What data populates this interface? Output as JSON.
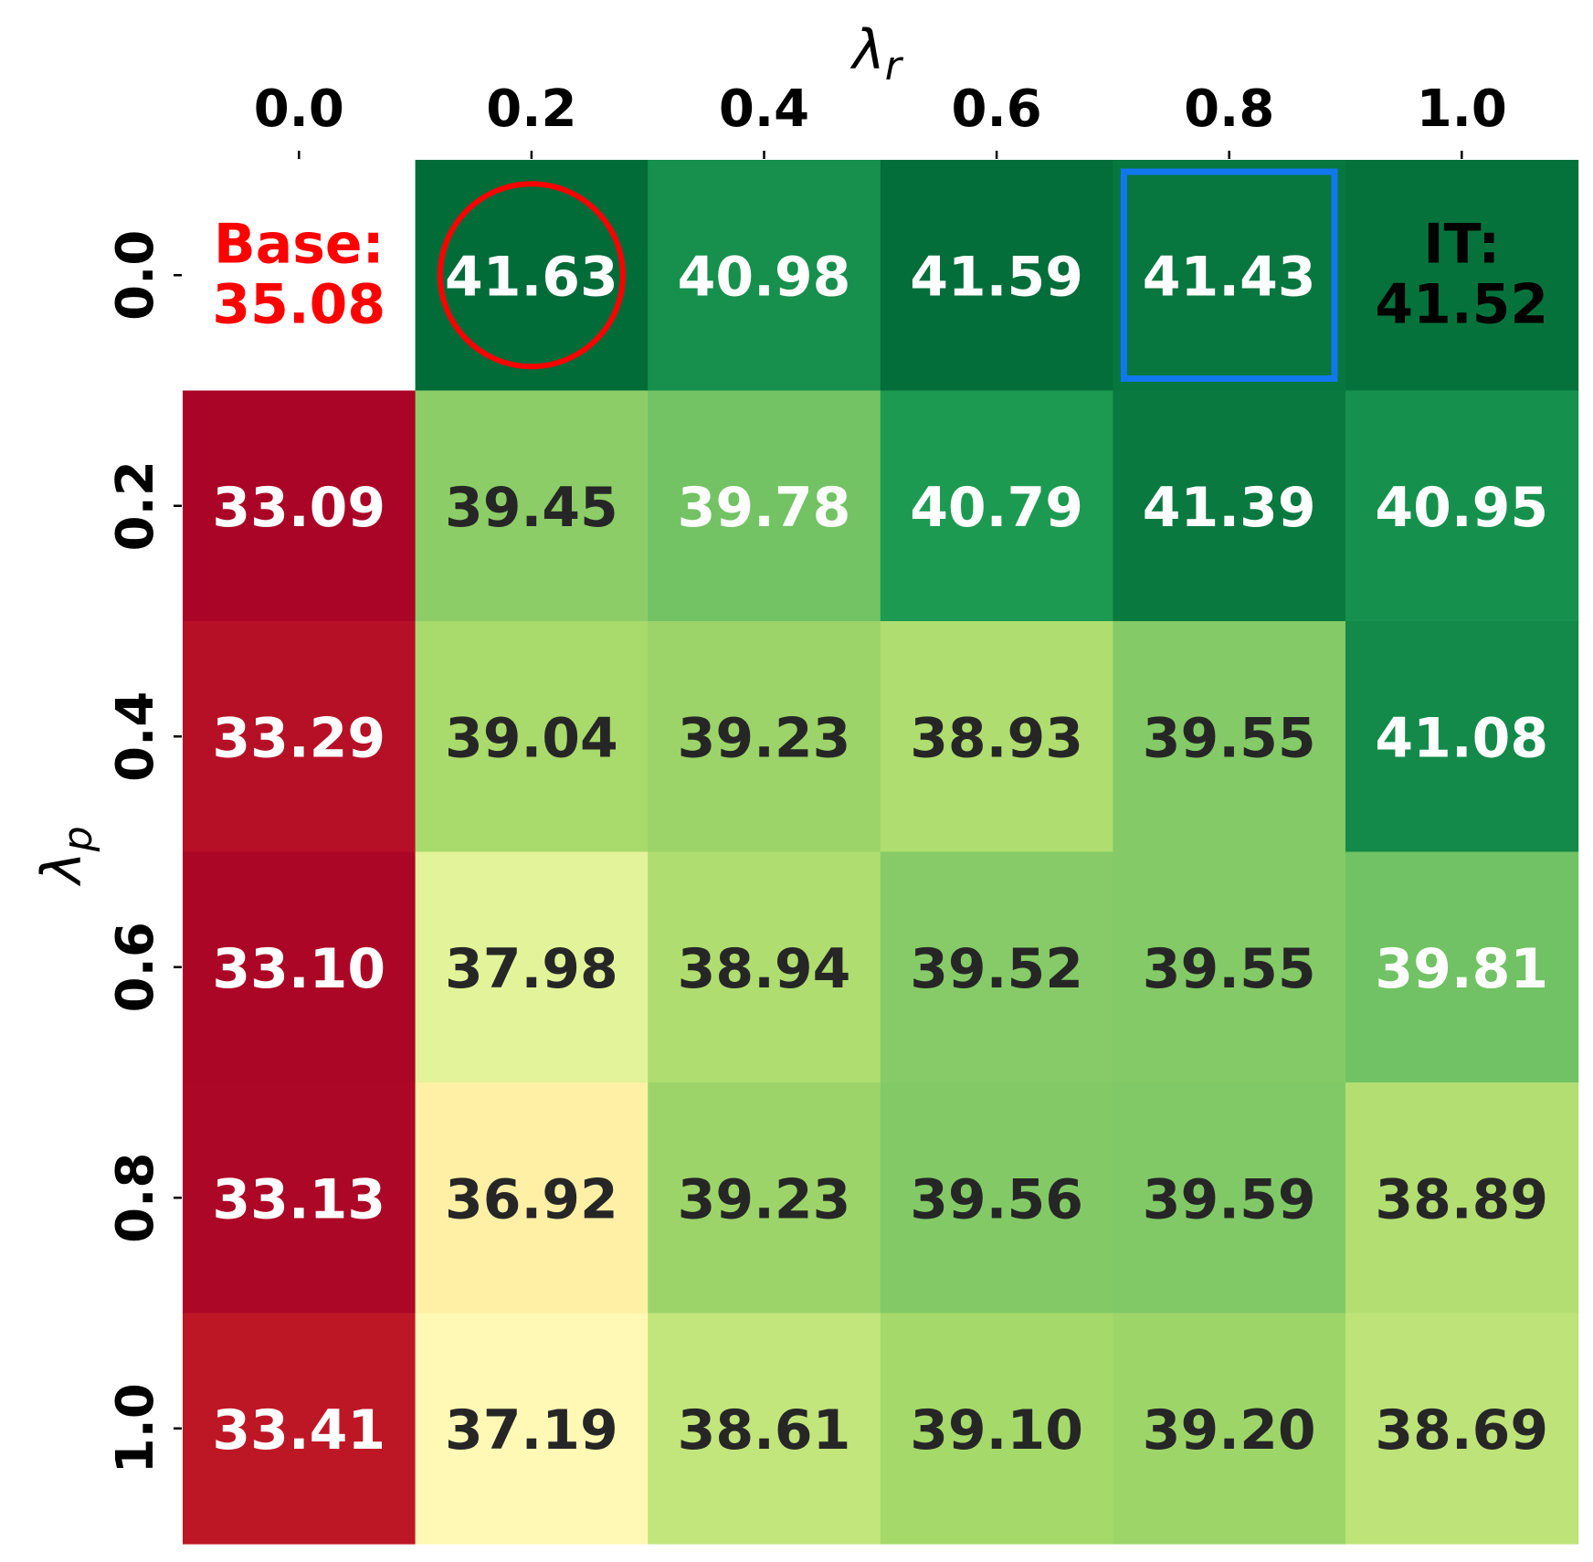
{
  "chart_data": {
    "type": "heatmap",
    "xlabel": "λ",
    "xlabel_sub": "r",
    "ylabel": "λ",
    "ylabel_sub": "p",
    "x_ticks": [
      "0.0",
      "0.2",
      "0.4",
      "0.6",
      "0.8",
      "1.0"
    ],
    "y_ticks": [
      "0.0",
      "0.2",
      "0.4",
      "0.6",
      "0.8",
      "1.0"
    ],
    "x_axis_position": "top",
    "colormap": "RdYlGn",
    "color_range": [
      33.0,
      41.7
    ],
    "values": [
      [
        null,
        41.63,
        40.98,
        41.59,
        41.43,
        41.52
      ],
      [
        33.09,
        39.45,
        39.78,
        40.79,
        41.39,
        40.95
      ],
      [
        33.29,
        39.04,
        39.23,
        38.93,
        39.55,
        41.08
      ],
      [
        33.1,
        37.98,
        38.94,
        39.52,
        39.55,
        39.81
      ],
      [
        33.13,
        36.92,
        39.23,
        39.56,
        39.59,
        38.89
      ],
      [
        33.41,
        37.19,
        38.61,
        39.1,
        39.2,
        38.69
      ]
    ],
    "annotations": {
      "base": {
        "label": "Base:",
        "value": "35.08",
        "color": "#ff0000"
      },
      "it": {
        "label": "IT:",
        "value": "41.52",
        "color": "#000000"
      },
      "circle": {
        "row": 0,
        "col": 1,
        "color": "#ff0000"
      },
      "box": {
        "row": 0,
        "col": 4,
        "color": "#1177ee"
      }
    }
  }
}
